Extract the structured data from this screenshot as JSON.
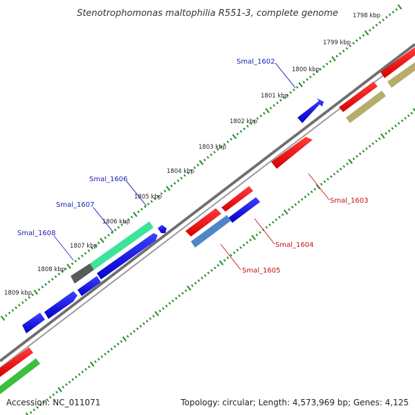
{
  "title": "Stenotrophomonas maltophilia R551-3, complete genome",
  "accession": "Accession: NC_011071",
  "summary": "Topology: circular; Length: 4,573,969 bp; Genes: 4,125",
  "ticks": [
    "1798 kbp",
    "1799 kbp",
    "1800 kbp",
    "1801 kbp",
    "1802 kbp",
    "1803 kbp",
    "1804 kbp",
    "1805 kbp",
    "1806 kbp",
    "1807 kbp",
    "1808 kbp",
    "1809 kbp"
  ],
  "gene_labels": {
    "smal_1602": "Smal_1602",
    "smal_1603": "Smal_1603",
    "smal_1604": "Smal_1604",
    "smal_1605": "Smal_1605",
    "smal_1606": "Smal_1606",
    "smal_1607": "Smal_1607",
    "smal_1608": "Smal_1608"
  },
  "colors": {
    "backbone": "#7a7a7a",
    "tick": "#1e8a1e",
    "forward_gene": "#0b0bd9",
    "reverse_gene": "#ee0000",
    "steelblue_gene": "#4f86c6",
    "aqua_gene": "#3de39b",
    "gray_gene": "#555555",
    "khaki_gene": "#b7ad6a",
    "green_gene": "#3cbf3c",
    "label_blue": "#1a1ab8",
    "label_red": "#c01010"
  }
}
